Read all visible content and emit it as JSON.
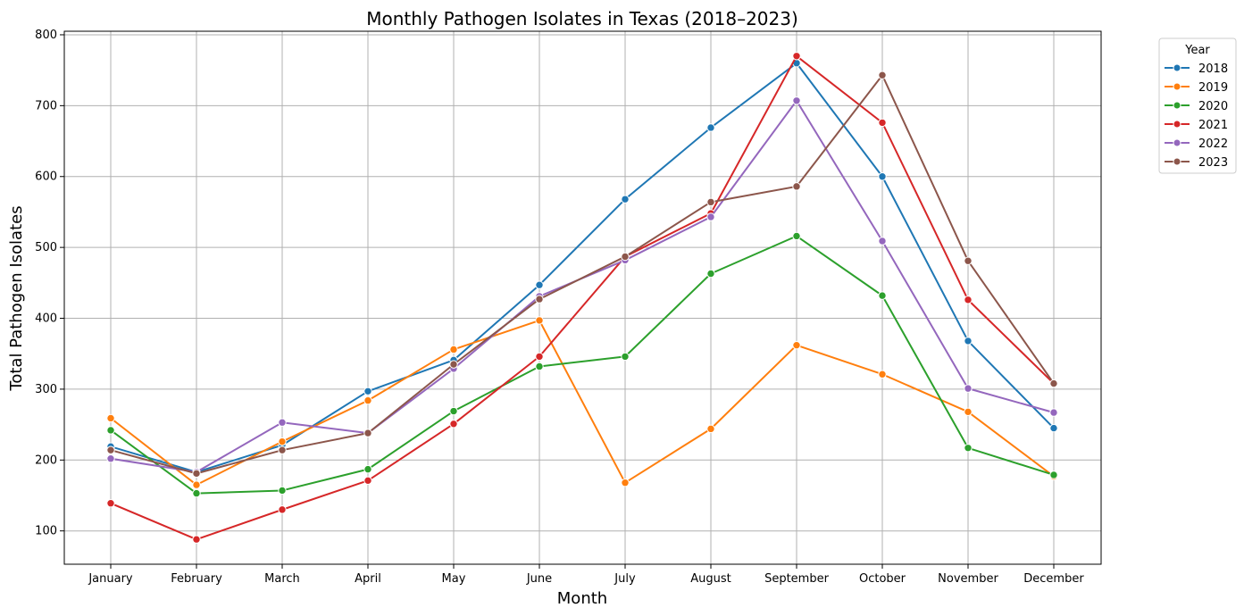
{
  "chart_data": {
    "type": "line",
    "title": "Monthly Pathogen Isolates in Texas (2018–2023)",
    "xlabel": "Month",
    "ylabel": "Total Pathogen Isolates",
    "categories": [
      "January",
      "February",
      "March",
      "April",
      "May",
      "June",
      "July",
      "August",
      "September",
      "October",
      "November",
      "December"
    ],
    "ylim": [
      53,
      805
    ],
    "yticks": [
      100,
      200,
      300,
      400,
      500,
      600,
      700,
      800
    ],
    "grid": true,
    "legend": {
      "title": "Year",
      "placement": "outside-top-right"
    },
    "series": [
      {
        "name": "2018",
        "color": "#1f77b4",
        "values": [
          219,
          183,
          221,
          297,
          341,
          447,
          568,
          669,
          760,
          600,
          368,
          245
        ]
      },
      {
        "name": "2019",
        "color": "#ff7f0e",
        "values": [
          259,
          165,
          226,
          284,
          356,
          397,
          168,
          244,
          362,
          321,
          268,
          177
        ]
      },
      {
        "name": "2020",
        "color": "#2ca02c",
        "values": [
          242,
          153,
          157,
          187,
          269,
          332,
          346,
          463,
          516,
          432,
          217,
          179
        ]
      },
      {
        "name": "2021",
        "color": "#d62728",
        "values": [
          139,
          88,
          130,
          171,
          251,
          346,
          487,
          548,
          770,
          676,
          426,
          308
        ]
      },
      {
        "name": "2022",
        "color": "#9467bd",
        "values": [
          202,
          183,
          253,
          238,
          329,
          431,
          482,
          543,
          707,
          509,
          301,
          267
        ]
      },
      {
        "name": "2023",
        "color": "#8c564b",
        "values": [
          214,
          181,
          214,
          238,
          335,
          427,
          487,
          564,
          586,
          743,
          481,
          308
        ]
      }
    ]
  }
}
